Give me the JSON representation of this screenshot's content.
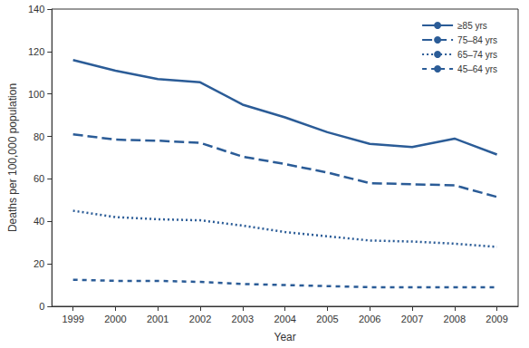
{
  "chart_data": {
    "type": "line",
    "x_label": "Year",
    "y_label": "Deaths per 100,000 population",
    "categories": [
      "1999",
      "2000",
      "2001",
      "2002",
      "2003",
      "2004",
      "2005",
      "2006",
      "2007",
      "2008",
      "2009"
    ],
    "series": [
      {
        "name": "≥85 yrs",
        "color": "#2b5c97",
        "line_style": "solid",
        "values": [
          116,
          111,
          107,
          105.5,
          95,
          89,
          82,
          76.5,
          75,
          79,
          71.5
        ]
      },
      {
        "name": "75–84 yrs",
        "color": "#2b5c97",
        "line_style": "long_dash",
        "values": [
          81,
          78.5,
          78,
          77,
          70.5,
          67,
          63,
          58,
          57.5,
          57,
          51.5
        ]
      },
      {
        "name": "65–74 yrs",
        "color": "#2b5c97",
        "line_style": "dotted",
        "values": [
          45,
          42,
          41,
          40.5,
          38,
          35,
          33,
          31,
          30.5,
          29.5,
          28
        ]
      },
      {
        "name": "45–64 yrs",
        "color": "#2b5c97",
        "line_style": "short_dash",
        "values": [
          12.5,
          12,
          12,
          11.5,
          10.5,
          10,
          9.5,
          9,
          9,
          9,
          9
        ]
      }
    ],
    "ylim": [
      0,
      140
    ],
    "yticks": [
      0,
      20,
      40,
      60,
      80,
      100,
      120,
      140
    ],
    "grid": false,
    "legend": "top-right"
  }
}
